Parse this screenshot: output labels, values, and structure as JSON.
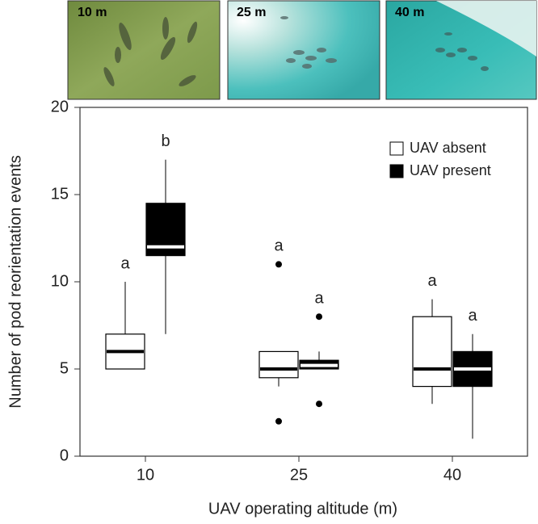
{
  "insets": [
    {
      "label": "10 m"
    },
    {
      "label": "25 m"
    },
    {
      "label": "40 m"
    }
  ],
  "chart_data": {
    "type": "box",
    "xlabel": "UAV operating altitude (m)",
    "ylabel": "Number of pod reorientation events",
    "categories": [
      "10",
      "25",
      "40"
    ],
    "ylim": [
      0,
      20
    ],
    "yticks": [
      0,
      5,
      10,
      15,
      20
    ],
    "legend": "upper right",
    "series": [
      {
        "name": "UAV absent",
        "color": "#ffffff",
        "median_color": "#000000",
        "boxes": [
          {
            "whislo": 5,
            "q1": 5,
            "med": 6,
            "q3": 7,
            "whishi": 10,
            "fliers": []
          },
          {
            "whislo": 4,
            "q1": 4.5,
            "med": 5,
            "q3": 6,
            "whishi": 6,
            "fliers": [
              2,
              11
            ]
          },
          {
            "whislo": 3,
            "q1": 4,
            "med": 5,
            "q3": 8,
            "whishi": 9,
            "fliers": []
          }
        ],
        "labels": [
          "a",
          "a",
          "a"
        ]
      },
      {
        "name": "UAV present",
        "color": "#000000",
        "median_color": "#ffffff",
        "boxes": [
          {
            "whislo": 7,
            "q1": 11.5,
            "med": 12,
            "q3": 14.5,
            "whishi": 17,
            "fliers": []
          },
          {
            "whislo": 5,
            "q1": 5,
            "med": 5.2,
            "q3": 5.5,
            "whishi": 6,
            "fliers": [
              3,
              8
            ]
          },
          {
            "whislo": 1,
            "q1": 4,
            "med": 5,
            "q3": 6,
            "whishi": 7,
            "fliers": []
          }
        ],
        "labels": [
          "b",
          "a",
          "a"
        ]
      }
    ]
  }
}
